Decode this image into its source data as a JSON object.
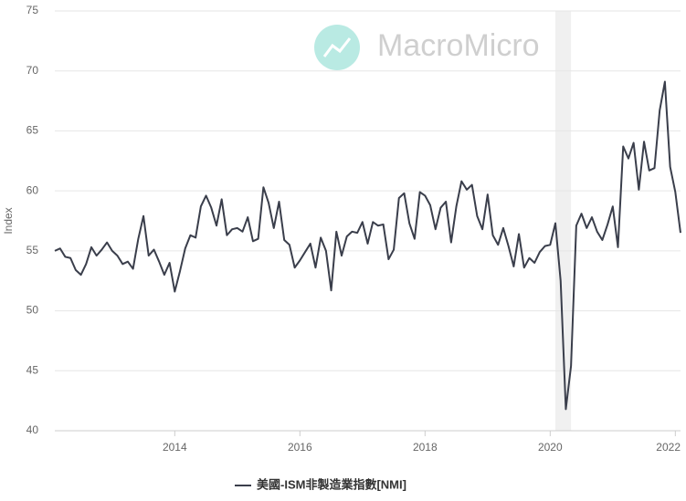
{
  "chart_data": {
    "type": "line",
    "watermark": "MacroMicro",
    "ylabel": "Index",
    "x": [
      2012.083,
      2012.167,
      2012.25,
      2012.333,
      2012.417,
      2012.5,
      2012.583,
      2012.667,
      2012.75,
      2012.833,
      2012.917,
      2013,
      2013.083,
      2013.167,
      2013.25,
      2013.333,
      2013.417,
      2013.5,
      2013.583,
      2013.667,
      2013.75,
      2013.833,
      2013.917,
      2014,
      2014.083,
      2014.167,
      2014.25,
      2014.333,
      2014.417,
      2014.5,
      2014.583,
      2014.667,
      2014.75,
      2014.833,
      2014.917,
      2015,
      2015.083,
      2015.167,
      2015.25,
      2015.333,
      2015.417,
      2015.5,
      2015.583,
      2015.667,
      2015.75,
      2015.833,
      2015.917,
      2016,
      2016.083,
      2016.167,
      2016.25,
      2016.333,
      2016.417,
      2016.5,
      2016.583,
      2016.667,
      2016.75,
      2016.833,
      2016.917,
      2017,
      2017.083,
      2017.167,
      2017.25,
      2017.333,
      2017.417,
      2017.5,
      2017.583,
      2017.667,
      2017.75,
      2017.833,
      2017.917,
      2018,
      2018.083,
      2018.167,
      2018.25,
      2018.333,
      2018.417,
      2018.5,
      2018.583,
      2018.667,
      2018.75,
      2018.833,
      2018.917,
      2019,
      2019.083,
      2019.167,
      2019.25,
      2019.333,
      2019.417,
      2019.5,
      2019.583,
      2019.667,
      2019.75,
      2019.833,
      2019.917,
      2020,
      2020.083,
      2020.167,
      2020.25,
      2020.333,
      2020.417,
      2020.5,
      2020.583,
      2020.667,
      2020.75,
      2020.833,
      2020.917,
      2021,
      2021.083,
      2021.167,
      2021.25,
      2021.333,
      2021.417,
      2021.5,
      2021.583,
      2021.667,
      2021.75,
      2021.833,
      2021.917,
      2022,
      2022.083
    ],
    "series": [
      {
        "name": "美國-ISM非製造業指數[NMI]",
        "color": "#3a3e4b",
        "values": [
          55.0,
          55.2,
          54.5,
          54.4,
          53.4,
          53.0,
          53.9,
          55.3,
          54.6,
          55.1,
          55.7,
          55.0,
          54.6,
          53.9,
          54.1,
          53.5,
          56.0,
          57.9,
          54.6,
          55.1,
          54.1,
          53.0,
          54.0,
          51.6,
          53.3,
          55.2,
          56.3,
          56.1,
          58.7,
          59.6,
          58.6,
          57.1,
          59.3,
          56.3,
          56.8,
          56.9,
          56.6,
          57.8,
          55.8,
          56.0,
          60.3,
          59.0,
          56.9,
          59.1,
          55.9,
          55.5,
          53.6,
          54.2,
          54.9,
          55.6,
          53.6,
          56.1,
          55.0,
          51.7,
          56.6,
          54.6,
          56.2,
          56.6,
          56.5,
          57.4,
          55.6,
          57.4,
          57.1,
          57.2,
          54.3,
          55.1,
          59.4,
          59.8,
          57.3,
          56.0,
          59.9,
          59.6,
          58.8,
          56.8,
          58.6,
          59.1,
          55.7,
          58.7,
          60.8,
          60.1,
          60.5,
          57.9,
          56.8,
          59.7,
          56.3,
          55.5,
          56.9,
          55.4,
          53.7,
          56.4,
          53.6,
          54.4,
          54.0,
          54.9,
          55.4,
          55.5,
          57.3,
          52.5,
          41.8,
          45.4,
          57.1,
          58.1,
          56.9,
          57.8,
          56.6,
          55.9,
          57.2,
          58.7,
          55.3,
          63.7,
          62.7,
          64.0,
          60.1,
          64.1,
          61.7,
          61.9,
          66.7,
          69.1,
          62.0,
          59.9,
          56.5
        ]
      }
    ],
    "shaded_range": [
      2020.083,
      2020.333
    ],
    "xlim": [
      2012.083,
      2022.083
    ],
    "xticks": [
      2014,
      2016,
      2018,
      2020,
      2022
    ],
    "ylim": [
      40,
      75
    ],
    "yticks": [
      40,
      45,
      50,
      55,
      60,
      65,
      70,
      75
    ],
    "grid": true
  }
}
